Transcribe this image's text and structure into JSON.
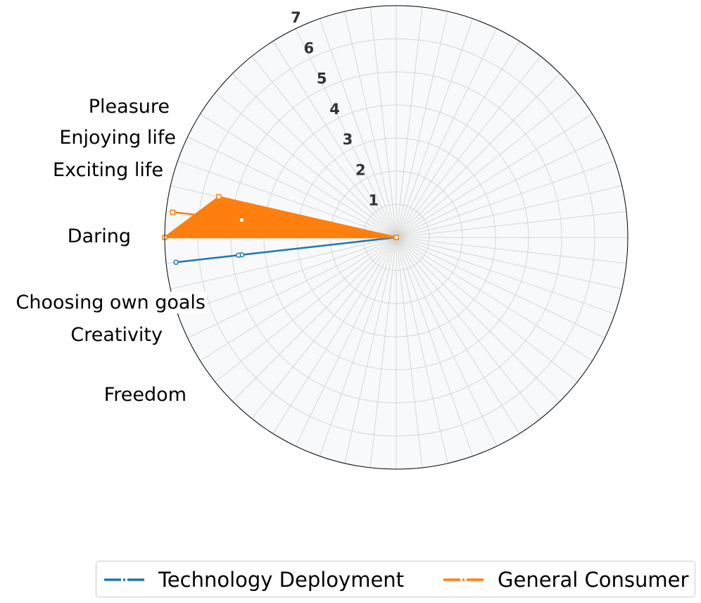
{
  "chart_data": {
    "type": "radar",
    "title": "",
    "categories": [
      "Freedom",
      "Creativity",
      "Choosing own goals",
      "Daring",
      "Exciting life",
      "Enjoying life",
      "Pleasure"
    ],
    "r_ticks": [
      "1",
      "2",
      "3",
      "4",
      "5",
      "6",
      "7"
    ],
    "rlim": [
      0,
      7
    ],
    "grid": true,
    "legend_position": "bottom",
    "series": [
      {
        "name": "Technology Deployment",
        "color": "#1f77b4",
        "marker": "circle",
        "points": [
          {
            "category": "Exciting life",
            "value": 6.7
          },
          {
            "category": "Exciting life",
            "value": 4.7
          },
          {
            "category": "Daring",
            "value": 0.0
          },
          {
            "category": "Exciting life",
            "value": 4.8
          }
        ]
      },
      {
        "name": "General Consumer",
        "color": "#ff7f0e",
        "marker": "square",
        "points": [
          {
            "category": "Daring",
            "value": 7.0
          },
          {
            "category": "Daring",
            "value": 0.0
          },
          {
            "category": "Choosing own goals",
            "value": 6.8
          },
          {
            "category": "Choosing own goals",
            "value": 4.7
          },
          {
            "category": "Daring",
            "value": 0.0
          },
          {
            "category": "Creativity",
            "value": 5.5
          }
        ]
      }
    ]
  },
  "legend": {
    "items": [
      {
        "label": "Technology Deployment",
        "color": "#1f77b4"
      },
      {
        "label": "General Consumer",
        "color": "#ff7f0e"
      }
    ]
  }
}
